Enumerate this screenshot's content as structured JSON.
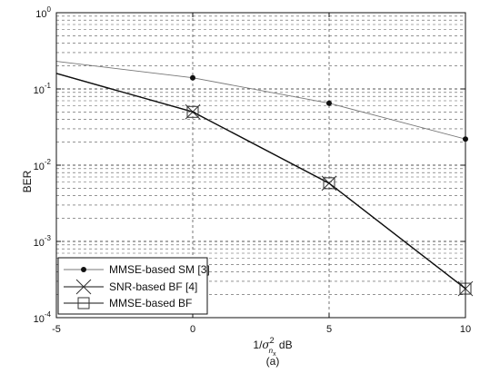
{
  "chart_data": {
    "type": "line",
    "ylabel": "BER",
    "xlabel": "1/σ²ₙₓ dB",
    "xlabel_parts": {
      "prefix": "1/",
      "sigma": "σ",
      "sup": "2",
      "sub_n": "n",
      "sub_x": "x",
      "suffix": " dB"
    },
    "caption": "(a)",
    "xlim": [
      -5,
      10
    ],
    "ylim": [
      0.0001,
      1
    ],
    "yscale": "log",
    "grid": true,
    "legend_position": "bottom-left",
    "x_ticks": [
      "-5",
      "0",
      "5",
      "10"
    ],
    "x_tick_values": [
      -5,
      0,
      5,
      10
    ],
    "y_ticks": [
      {
        "base": "10",
        "exp": "0",
        "value": 1
      },
      {
        "base": "10",
        "exp": "-1",
        "value": 0.1
      },
      {
        "base": "10",
        "exp": "-2",
        "value": 0.01
      },
      {
        "base": "10",
        "exp": "-3",
        "value": 0.001
      },
      {
        "base": "10",
        "exp": "-4",
        "value": 0.0001
      }
    ],
    "series": [
      {
        "name": "MMSE-based SM [3]",
        "marker": "dot",
        "color": "#777777",
        "x": [
          -5,
          0,
          5,
          10
        ],
        "y": [
          0.23,
          0.14,
          0.065,
          0.022
        ],
        "marker_x": [
          0,
          5,
          10
        ]
      },
      {
        "name": "SNR-based BF [4]",
        "marker": "x",
        "color": "#111111",
        "x": [
          -5,
          0,
          5,
          10
        ],
        "y": [
          0.16,
          0.05,
          0.0058,
          0.00024
        ],
        "marker_x": [
          0,
          5,
          10
        ]
      },
      {
        "name": "MMSE-based BF",
        "marker": "square",
        "color": "#111111",
        "x": [
          -5,
          0,
          5,
          10
        ],
        "y": [
          0.16,
          0.05,
          0.0058,
          0.00024
        ],
        "marker_x": [
          0,
          5,
          10
        ]
      }
    ]
  }
}
